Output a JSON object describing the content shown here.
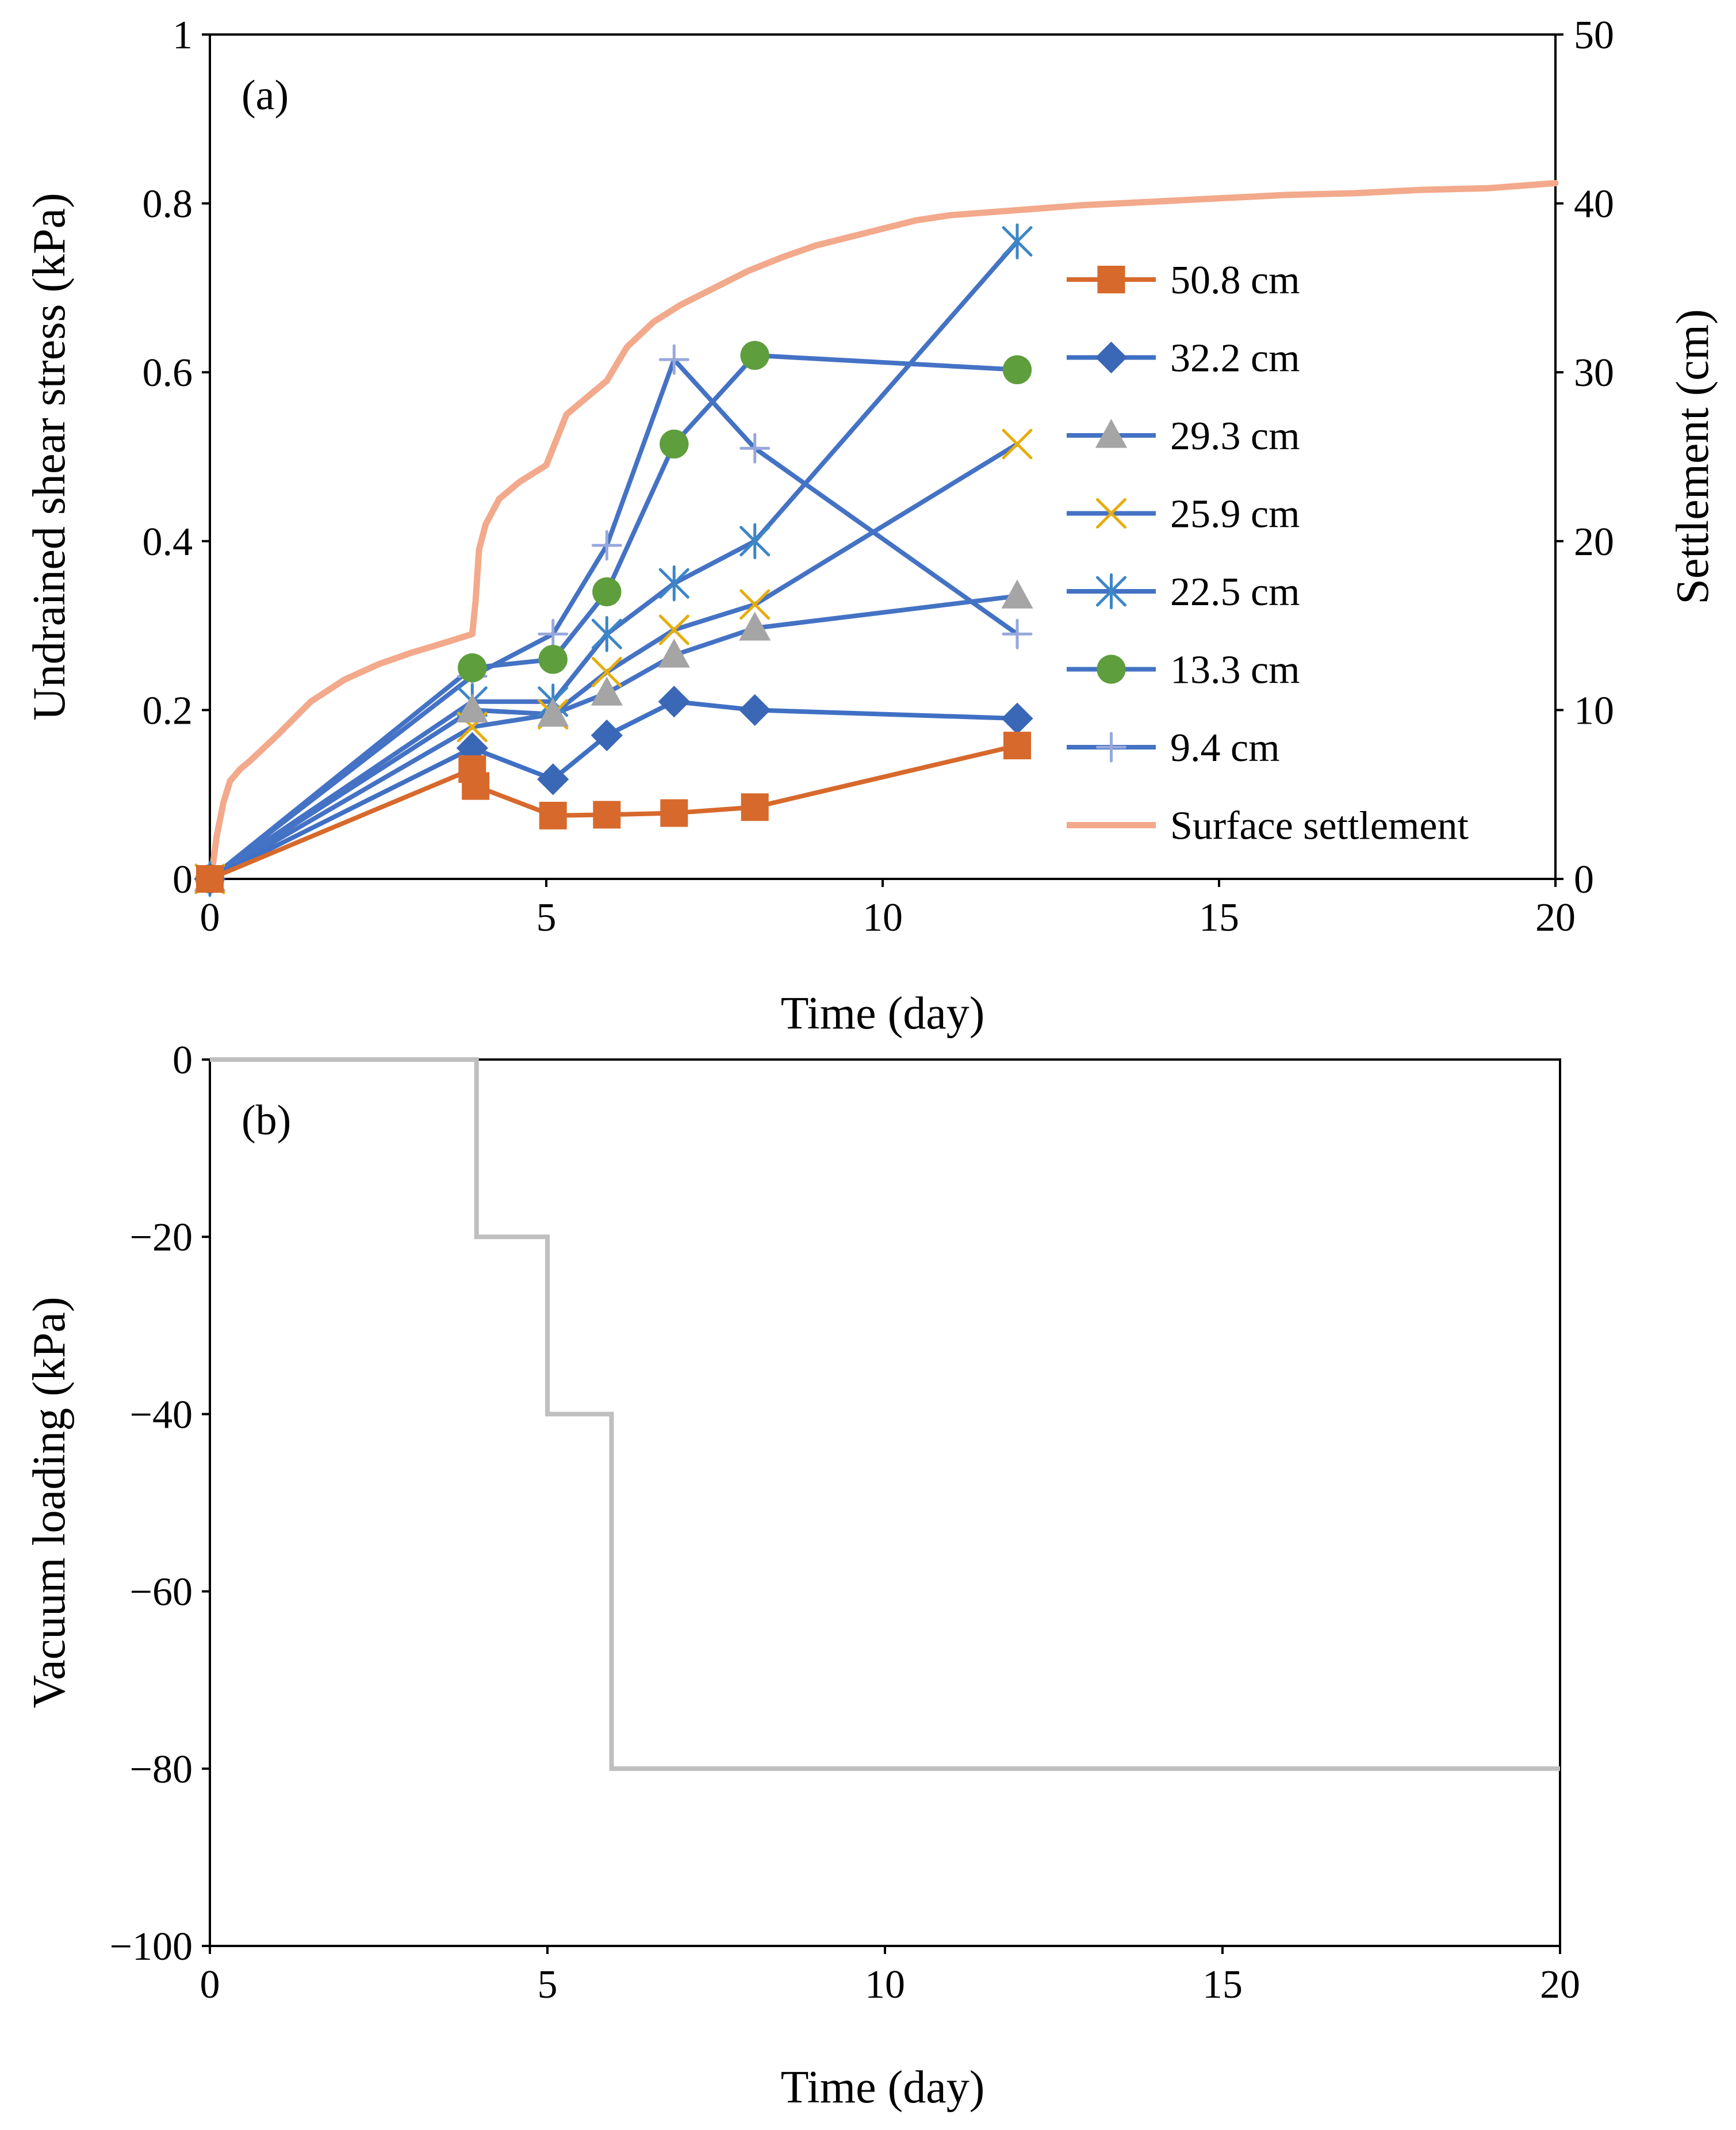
{
  "chart_data": [
    {
      "id": "a",
      "type": "line",
      "panel_label": "(a)",
      "xlabel": "Time (day)",
      "ylabel": "Undrained shear stress (kPa)",
      "y2label": "Settlement (cm)",
      "xlim": [
        0,
        20
      ],
      "ylim": [
        0,
        1
      ],
      "y2lim": [
        0,
        50
      ],
      "x_ticks": [
        "0",
        "5",
        "10",
        "15",
        "20"
      ],
      "y_ticks": [
        "0",
        "0.2",
        "0.4",
        "0.6",
        "0.8",
        "1"
      ],
      "y2_ticks": [
        "0",
        "10",
        "20",
        "30",
        "40",
        "50"
      ],
      "legend_position": "right-center",
      "series": [
        {
          "name": "50.8 cm",
          "color": "#D7692C",
          "line_color": "#D7692C",
          "marker": "square",
          "x": [
            0,
            3.9,
            3.95,
            5.1,
            5.9,
            6.9,
            8.1,
            12.0
          ],
          "y": [
            0,
            0.13,
            0.11,
            0.075,
            0.076,
            0.078,
            0.085,
            0.158
          ]
        },
        {
          "name": "32.2 cm",
          "color": "#3A67B6",
          "line_color": "#3F70C4",
          "marker": "diamond",
          "x": [
            0,
            3.9,
            5.1,
            5.9,
            6.9,
            8.1,
            12.0
          ],
          "y": [
            0,
            0.155,
            0.118,
            0.17,
            0.21,
            0.2,
            0.19
          ]
        },
        {
          "name": "29.3 cm",
          "color": "#A5A5A5",
          "line_color": "#4472C4",
          "marker": "triangle",
          "x": [
            0,
            3.9,
            5.1,
            5.9,
            6.9,
            8.1,
            12.0
          ],
          "y": [
            0,
            0.2,
            0.195,
            0.22,
            0.265,
            0.297,
            0.335
          ]
        },
        {
          "name": "25.9 cm",
          "color": "#E7AD0E",
          "line_color": "#4472C4",
          "marker": "x",
          "x": [
            0,
            3.9,
            5.1,
            5.9,
            6.9,
            8.1,
            12.0
          ],
          "y": [
            0,
            0.18,
            0.195,
            0.245,
            0.295,
            0.325,
            0.515
          ]
        },
        {
          "name": "22.5 cm",
          "color": "#3C86C6",
          "line_color": "#4472C4",
          "marker": "asterisk",
          "x": [
            0,
            3.9,
            5.1,
            5.9,
            6.9,
            8.1,
            12.0
          ],
          "y": [
            0,
            0.21,
            0.21,
            0.29,
            0.35,
            0.4,
            0.755
          ]
        },
        {
          "name": "13.3 cm",
          "color": "#5E9E3C",
          "line_color": "#4472C4",
          "marker": "circle",
          "x": [
            0,
            3.9,
            5.1,
            5.9,
            6.9,
            8.1,
            12.0
          ],
          "y": [
            0,
            0.25,
            0.26,
            0.34,
            0.515,
            0.62,
            0.603
          ]
        },
        {
          "name": "9.4 cm",
          "color": "#97A8DC",
          "line_color": "#4472C4",
          "marker": "plus",
          "x": [
            0,
            3.9,
            5.1,
            5.9,
            6.9,
            8.1,
            12.0
          ],
          "y": [
            0,
            0.24,
            0.29,
            0.395,
            0.615,
            0.51,
            0.29
          ]
        },
        {
          "name": "Surface settlement",
          "color": "#F3A98B",
          "line_color": "#F3A98B",
          "marker": "none",
          "axis": "secondary",
          "x": [
            0,
            0.05,
            0.1,
            0.2,
            0.3,
            0.45,
            0.6,
            1.0,
            1.5,
            2.0,
            2.5,
            3.0,
            3.5,
            3.9,
            3.95,
            4.0,
            4.1,
            4.3,
            4.6,
            5.0,
            5.3,
            5.6,
            5.9,
            6.2,
            6.6,
            7.0,
            7.5,
            8.0,
            8.5,
            9.0,
            9.5,
            10.0,
            10.5,
            11.0,
            12.0,
            13.0,
            14.0,
            15.0,
            16.0,
            17.0,
            18.0,
            19.0,
            20.0
          ],
          "y": [
            0,
            1.0,
            2.5,
            4.5,
            5.8,
            6.5,
            7.0,
            8.5,
            10.5,
            11.8,
            12.7,
            13.4,
            14.0,
            14.5,
            16.5,
            19.5,
            21.0,
            22.5,
            23.5,
            24.5,
            27.5,
            28.5,
            29.5,
            31.5,
            33.0,
            34.0,
            35.0,
            36.0,
            36.8,
            37.5,
            38.0,
            38.5,
            39.0,
            39.3,
            39.6,
            39.9,
            40.1,
            40.3,
            40.5,
            40.6,
            40.8,
            40.9,
            41.2
          ]
        }
      ]
    },
    {
      "id": "b",
      "type": "line",
      "panel_label": "(b)",
      "xlabel": "Time (day)",
      "ylabel": "Vacuum loading (kPa)",
      "xlim": [
        0,
        20
      ],
      "ylim": [
        -100,
        0
      ],
      "x_ticks": [
        "0",
        "5",
        "10",
        "15",
        "20"
      ],
      "y_ticks": [
        "0",
        "−20",
        "−40",
        "−60",
        "−80",
        "−100"
      ],
      "series": [
        {
          "name": "Vacuum loading",
          "color": "#BFBFBF",
          "marker": "none",
          "x": [
            0,
            3.95,
            3.95,
            5.0,
            5.0,
            5.95,
            5.95,
            20
          ],
          "y": [
            0,
            0,
            -20,
            -20,
            -40,
            -40,
            -80,
            -80
          ]
        }
      ]
    }
  ]
}
